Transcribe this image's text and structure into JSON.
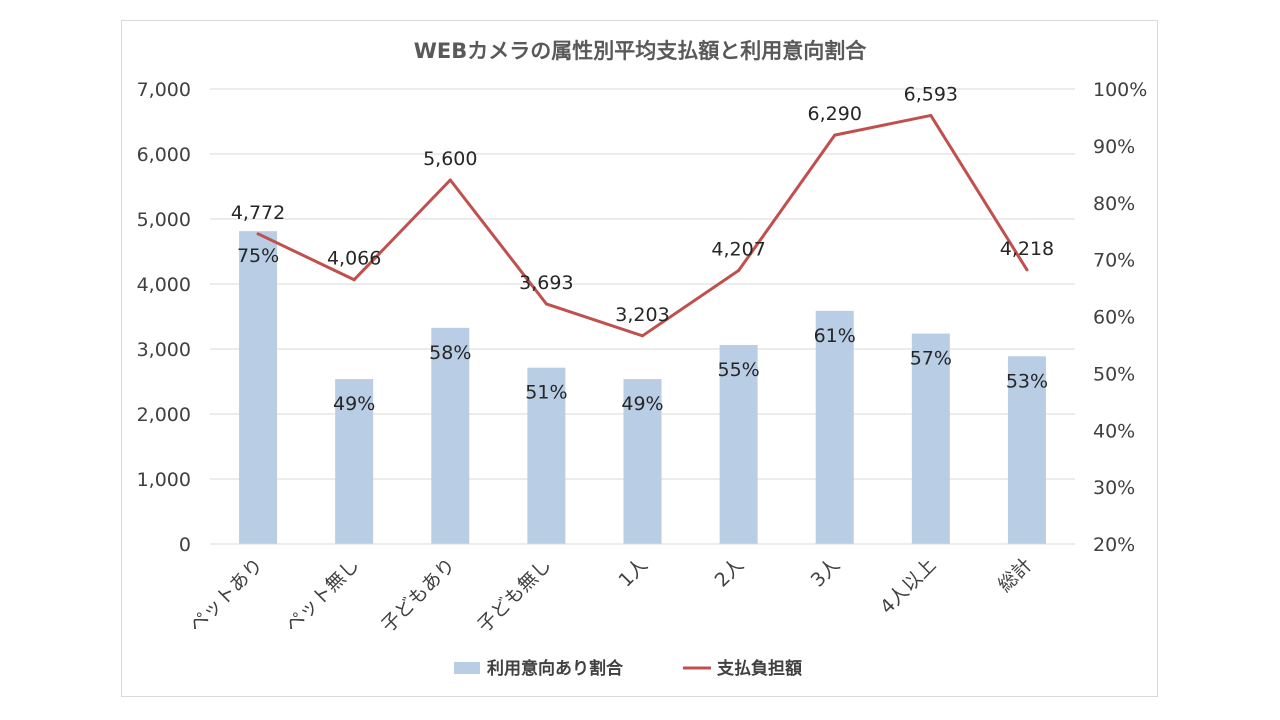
{
  "chart_data": {
    "type": "bar+line",
    "title": "WEBカメラの属性別平均支払額と利用意向割合",
    "categories": [
      "ペットあり",
      "ペット無し",
      "子どもあり",
      "子ども無し",
      "1人",
      "2人",
      "3人",
      "4人以上",
      "総計"
    ],
    "series": [
      {
        "name": "利用意向あり割合",
        "kind": "bar",
        "axis": "right",
        "color": "#b9cde5",
        "values": [
          0.75,
          0.49,
          0.58,
          0.51,
          0.49,
          0.55,
          0.61,
          0.57,
          0.53
        ],
        "labels": [
          "75%",
          "49%",
          "58%",
          "51%",
          "49%",
          "55%",
          "61%",
          "57%",
          "53%"
        ]
      },
      {
        "name": "支払負担額",
        "kind": "line",
        "axis": "left",
        "color": "#c0504d",
        "values": [
          4772,
          4066,
          5600,
          3693,
          3203,
          4207,
          6290,
          6593,
          4218
        ],
        "labels": [
          "4,772",
          "4,066",
          "5,600",
          "3,693",
          "3,203",
          "4,207",
          "6,290",
          "6,593",
          "4,218"
        ]
      }
    ],
    "y_left": {
      "ylim": [
        0,
        7000
      ],
      "ticks": [
        0,
        1000,
        2000,
        3000,
        4000,
        5000,
        6000,
        7000
      ],
      "tick_labels": [
        "0",
        "1,000",
        "2,000",
        "3,000",
        "4,000",
        "5,000",
        "6,000",
        "7,000"
      ]
    },
    "y_right": {
      "ylim": [
        0.2,
        1.0
      ],
      "ticks": [
        0.2,
        0.3,
        0.4,
        0.5,
        0.6,
        0.7,
        0.8,
        0.9,
        1.0
      ],
      "tick_labels": [
        "20%",
        "30%",
        "40%",
        "50%",
        "60%",
        "70%",
        "80%",
        "90%",
        "100%"
      ]
    },
    "grid": true,
    "legend_position": "bottom"
  }
}
